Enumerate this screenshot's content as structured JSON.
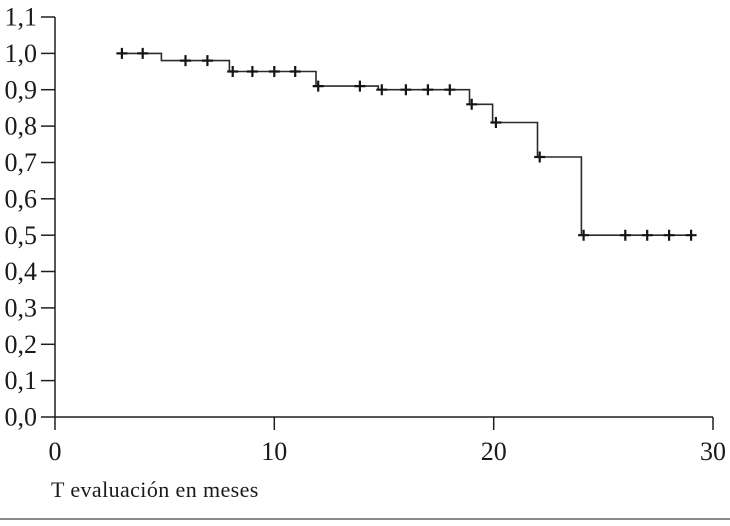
{
  "figure": {
    "xlabel": "T evaluación en meses",
    "colors": {
      "background": "#ffffff",
      "axis": "#1f1f1f",
      "curve": "#2b2b2b",
      "censor": "#141414",
      "tick_text": "#1a1a1a",
      "divider": "#8a8a8a"
    }
  },
  "chart_data": {
    "type": "line",
    "subtype": "kaplan_meier_step_curve",
    "title": "",
    "xlabel": "T evaluación en meses",
    "ylabel": "",
    "xlim": [
      0,
      30
    ],
    "ylim": [
      0.0,
      1.1
    ],
    "x_ticks": [
      0,
      10,
      20,
      30
    ],
    "x_tick_labels": [
      "0",
      "10",
      "20",
      "30"
    ],
    "y_ticks": [
      0.0,
      0.1,
      0.2,
      0.3,
      0.4,
      0.5,
      0.6,
      0.7,
      0.8,
      0.9,
      1.0,
      1.1
    ],
    "y_tick_labels": [
      "0,0",
      "0,1",
      "0,2",
      "0,3",
      "0,4",
      "0,5",
      "0,6",
      "0,7",
      "0,8",
      "0,9",
      "1,0",
      "1,1"
    ],
    "decimal_separator": ",",
    "grid": false,
    "legend": false,
    "series": [
      {
        "steps": [
          [
            2.9,
            1.0
          ],
          [
            4.85,
            0.98
          ],
          [
            7.95,
            0.95
          ],
          [
            11.9,
            0.91
          ],
          [
            14.74,
            0.9
          ],
          [
            18.9,
            0.86
          ],
          [
            19.95,
            0.81
          ],
          [
            22.0,
            0.715
          ],
          [
            24.0,
            0.5
          ],
          [
            29.2,
            0.5
          ]
        ],
        "censor_marks": [
          [
            3.05,
            1.0
          ],
          [
            4.0,
            1.0
          ],
          [
            5.95,
            0.98
          ],
          [
            6.95,
            0.98
          ],
          [
            8.1,
            0.95
          ],
          [
            9.0,
            0.95
          ],
          [
            10.0,
            0.95
          ],
          [
            10.95,
            0.95
          ],
          [
            12.0,
            0.91
          ],
          [
            13.9,
            0.91
          ],
          [
            14.9,
            0.9
          ],
          [
            16.0,
            0.9
          ],
          [
            17.0,
            0.9
          ],
          [
            18.0,
            0.9
          ],
          [
            19.0,
            0.86
          ],
          [
            20.1,
            0.81
          ],
          [
            22.1,
            0.715
          ],
          [
            24.1,
            0.5
          ],
          [
            26.0,
            0.5
          ],
          [
            27.0,
            0.5
          ],
          [
            28.0,
            0.5
          ],
          [
            29.0,
            0.5
          ]
        ]
      }
    ]
  }
}
